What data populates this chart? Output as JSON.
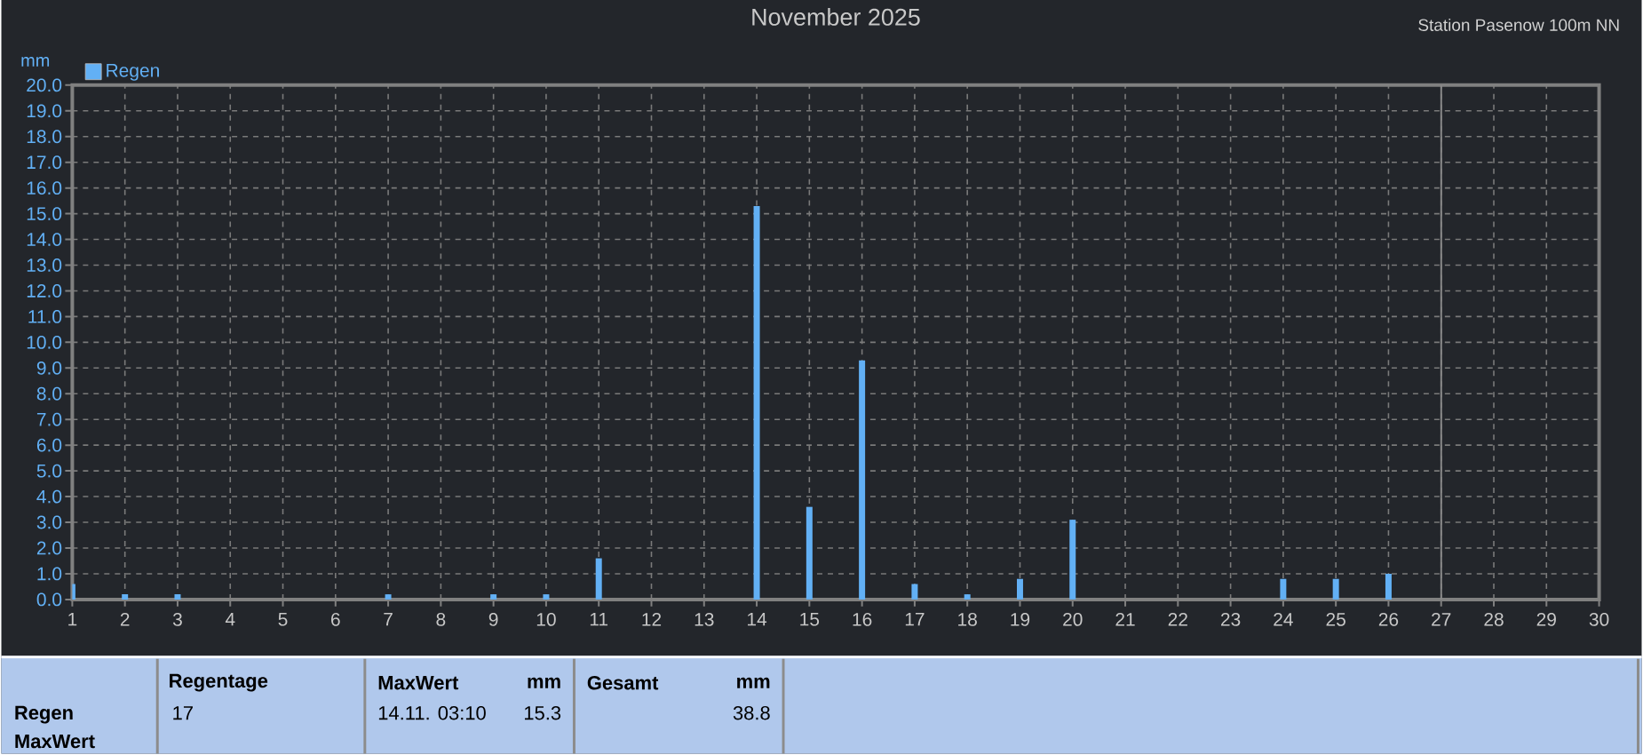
{
  "chart_data": {
    "type": "bar",
    "title": "November 2025",
    "ylabel": "mm",
    "x": [
      1,
      2,
      3,
      7,
      9,
      10,
      11,
      14,
      15,
      16,
      17,
      18,
      19,
      20,
      24,
      25,
      26
    ],
    "series": [
      {
        "name": "Regen",
        "color": "#62b0f5",
        "values": [
          0.6,
          0.2,
          0.2,
          0.2,
          0.2,
          0.2,
          1.6,
          15.3,
          3.6,
          9.3,
          0.6,
          0.2,
          0.8,
          3.1,
          0.8,
          0.8,
          1.0
        ]
      }
    ],
    "xlim": [
      1,
      30
    ],
    "xticks": [
      1,
      2,
      3,
      4,
      5,
      6,
      7,
      8,
      9,
      10,
      11,
      12,
      13,
      14,
      15,
      16,
      17,
      18,
      19,
      20,
      21,
      22,
      23,
      24,
      25,
      26,
      27,
      28,
      29,
      30
    ],
    "ylim": [
      0,
      20
    ],
    "yticks": [
      {
        "value": 0,
        "label": "0.0"
      },
      {
        "value": 1,
        "label": "1.0"
      },
      {
        "value": 2,
        "label": "2.0"
      },
      {
        "value": 3,
        "label": "3.0"
      },
      {
        "value": 4,
        "label": "4.0"
      },
      {
        "value": 5,
        "label": "5.0"
      },
      {
        "value": 6,
        "label": "6.0"
      },
      {
        "value": 7,
        "label": "7.0"
      },
      {
        "value": 8,
        "label": "8.0"
      },
      {
        "value": 9,
        "label": "9.0"
      },
      {
        "value": 10,
        "label": "10.0"
      },
      {
        "value": 11,
        "label": "11.0"
      },
      {
        "value": 12,
        "label": "12.0"
      },
      {
        "value": 13,
        "label": "13.0"
      },
      {
        "value": 14,
        "label": "14.0"
      },
      {
        "value": 15,
        "label": "15.0"
      },
      {
        "value": 16,
        "label": "16.0"
      },
      {
        "value": 17,
        "label": "17.0"
      },
      {
        "value": 18,
        "label": "18.0"
      },
      {
        "value": 19,
        "label": "19.0"
      },
      {
        "value": 20,
        "label": "20.0"
      }
    ],
    "grid": true,
    "legend": "top left",
    "ref_lines": [
      {
        "axis": "x",
        "value": 27,
        "color": "#8c8c8c",
        "line_style": "solid"
      }
    ],
    "annotations": [
      "Station Pasenow 100m NN",
      "Regen",
      "MaxWert",
      "Regentage",
      "17",
      "MaxWert",
      "mm",
      "14.11. 03:10",
      "15.3",
      "Gesamt",
      "mm",
      "38.8"
    ]
  }
}
